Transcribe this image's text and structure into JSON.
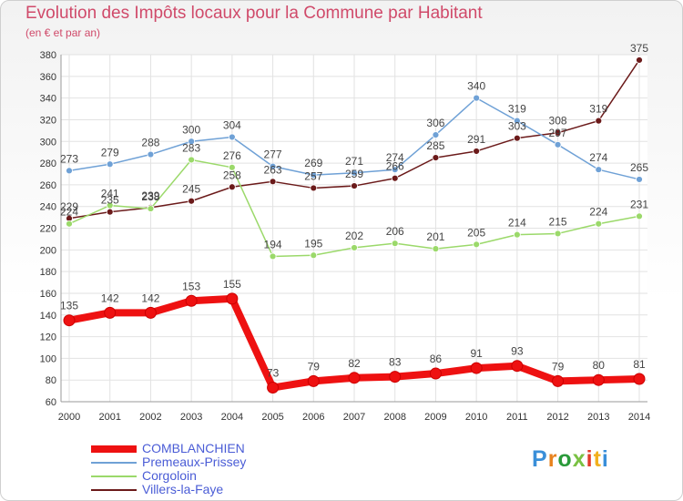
{
  "title": "Evolution des Impôts locaux pour la Commune par Habitant",
  "subtitle": "(en € et par an)",
  "logo": {
    "text": "Proxiti",
    "colors": [
      "#3a8fd9",
      "#e8821e",
      "#2a9a3a",
      "#7ac143",
      "#e23a2a",
      "#f2b01e",
      "#3a8fd9"
    ]
  },
  "chart_data": {
    "type": "line",
    "x": [
      "2000",
      "2001",
      "2002",
      "2003",
      "2004",
      "2005",
      "2006",
      "2007",
      "2008",
      "2009",
      "2010",
      "2011",
      "2012",
      "2013",
      "2014"
    ],
    "ylim": [
      60,
      380
    ],
    "yticks": [
      60,
      80,
      100,
      120,
      140,
      160,
      180,
      200,
      220,
      240,
      260,
      280,
      300,
      320,
      340,
      360,
      380
    ],
    "grid": true,
    "legend_position": "bottom-left",
    "series": [
      {
        "name": "COMBLANCHIEN",
        "color": "#ee1111",
        "values": [
          135,
          142,
          142,
          153,
          155,
          73,
          79,
          82,
          83,
          86,
          91,
          93,
          79,
          80,
          81
        ]
      },
      {
        "name": "Premeaux-Prissey",
        "color": "#6fa1d6",
        "values": [
          273,
          279,
          288,
          300,
          304,
          277,
          269,
          271,
          274,
          306,
          340,
          319,
          297,
          274,
          265
        ]
      },
      {
        "name": "Corgoloin",
        "color": "#9bd96a",
        "values": [
          224,
          241,
          238,
          283,
          276,
          194,
          195,
          202,
          206,
          201,
          205,
          214,
          215,
          224,
          231
        ]
      },
      {
        "name": "Villers-la-Faye",
        "color": "#6b1a1a",
        "values": [
          229,
          235,
          239,
          245,
          258,
          263,
          257,
          259,
          266,
          285,
          291,
          303,
          308,
          319,
          375
        ]
      }
    ]
  }
}
